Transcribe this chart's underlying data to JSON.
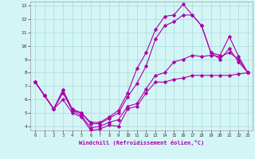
{
  "xlabel": "Windchill (Refroidissement éolien,°C)",
  "xlim": [
    -0.5,
    23.5
  ],
  "ylim": [
    3.7,
    13.3
  ],
  "xticks": [
    0,
    1,
    2,
    3,
    4,
    5,
    6,
    7,
    8,
    9,
    10,
    11,
    12,
    13,
    14,
    15,
    16,
    17,
    18,
    19,
    20,
    21,
    22,
    23
  ],
  "yticks": [
    4,
    5,
    6,
    7,
    8,
    9,
    10,
    11,
    12,
    13
  ],
  "background_color": "#d4f5f5",
  "grid_color": "#b0dede",
  "line_color": "#aa00aa",
  "lines": [
    {
      "x": [
        0,
        1,
        2,
        3,
        4,
        5,
        6,
        7,
        8,
        9,
        10,
        11,
        12,
        13,
        14,
        15,
        16,
        17,
        18,
        19,
        20,
        21,
        22,
        23
      ],
      "y": [
        7.3,
        6.3,
        5.3,
        6.0,
        5.0,
        4.7,
        3.7,
        3.8,
        4.1,
        4.0,
        5.3,
        5.5,
        6.5,
        7.3,
        7.3,
        7.5,
        7.6,
        7.8,
        7.8,
        7.8,
        7.8,
        7.8,
        7.9,
        8.0
      ]
    },
    {
      "x": [
        0,
        1,
        2,
        3,
        4,
        5,
        6,
        7,
        8,
        9,
        10,
        11,
        12,
        13,
        14,
        15,
        16,
        17,
        18,
        19,
        20,
        21,
        22,
        23
      ],
      "y": [
        7.3,
        6.3,
        5.3,
        6.7,
        5.3,
        5.0,
        4.3,
        4.3,
        4.7,
        5.2,
        6.5,
        8.3,
        9.5,
        11.2,
        12.2,
        12.3,
        13.1,
        12.3,
        11.5,
        9.5,
        9.3,
        10.7,
        9.2,
        8.0
      ]
    },
    {
      "x": [
        0,
        1,
        2,
        3,
        4,
        5,
        6,
        7,
        8,
        9,
        10,
        11,
        12,
        13,
        14,
        15,
        16,
        17,
        18,
        19,
        20,
        21,
        22,
        23
      ],
      "y": [
        7.3,
        6.3,
        5.3,
        6.5,
        5.2,
        4.8,
        3.9,
        4.0,
        4.3,
        4.5,
        5.5,
        5.7,
        6.8,
        7.8,
        8.0,
        8.8,
        9.0,
        9.3,
        9.2,
        9.3,
        9.2,
        9.5,
        9.0,
        8.0
      ]
    },
    {
      "x": [
        0,
        1,
        2,
        3,
        4,
        5,
        6,
        7,
        8,
        9,
        10,
        11,
        12,
        13,
        14,
        15,
        16,
        17,
        18,
        19,
        20,
        21,
        22,
        23
      ],
      "y": [
        7.3,
        6.3,
        5.3,
        6.7,
        5.2,
        5.0,
        4.2,
        4.2,
        4.6,
        5.0,
        6.2,
        7.2,
        8.5,
        10.5,
        11.5,
        11.8,
        12.3,
        12.3,
        11.5,
        9.5,
        9.0,
        9.8,
        8.8,
        8.0
      ]
    }
  ]
}
